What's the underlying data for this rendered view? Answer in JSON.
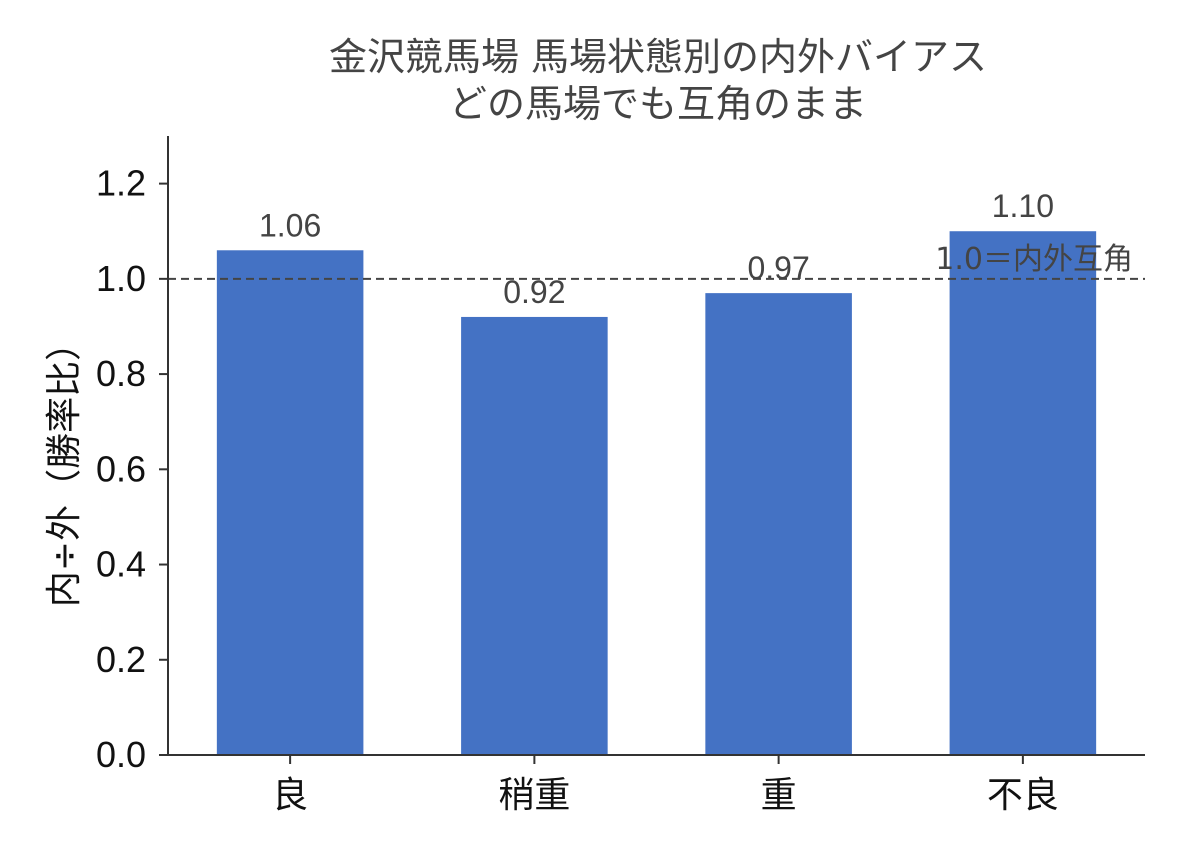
{
  "chart_data": {
    "type": "bar",
    "title": "金沢競馬場 馬場状態別の内外バイアス",
    "subtitle": "どの馬場でも互角のまま",
    "xlabel": "",
    "ylabel": "内÷外（勝率比）",
    "categories": [
      "良",
      "稍重",
      "重",
      "不良"
    ],
    "values": [
      1.06,
      0.92,
      0.97,
      1.1
    ],
    "data_labels": [
      "1.06",
      "0.92",
      "0.97",
      "1.10"
    ],
    "ylim": [
      0,
      1.3
    ],
    "yticks": [
      0.0,
      0.2,
      0.4,
      0.6,
      0.8,
      1.0,
      1.2
    ],
    "ytick_labels": [
      "0.0",
      "0.2",
      "0.4",
      "0.6",
      "0.8",
      "1.0",
      "1.2"
    ],
    "reference_line": {
      "value": 1.0,
      "label": "1.0＝内外互角",
      "style": "dashed"
    },
    "grid": false,
    "colors": {
      "bar": "#4472C4",
      "axis": "#333333",
      "reference": "#444444"
    }
  }
}
